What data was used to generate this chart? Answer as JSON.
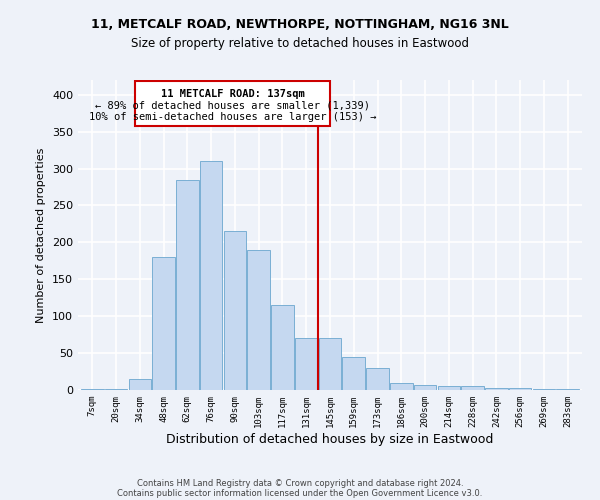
{
  "title1": "11, METCALF ROAD, NEWTHORPE, NOTTINGHAM, NG16 3NL",
  "title2": "Size of property relative to detached houses in Eastwood",
  "xlabel": "Distribution of detached houses by size in Eastwood",
  "ylabel": "Number of detached properties",
  "categories": [
    "7sqm",
    "20sqm",
    "34sqm",
    "48sqm",
    "62sqm",
    "76sqm",
    "90sqm",
    "103sqm",
    "117sqm",
    "131sqm",
    "145sqm",
    "159sqm",
    "173sqm",
    "186sqm",
    "200sqm",
    "214sqm",
    "228sqm",
    "242sqm",
    "256sqm",
    "269sqm",
    "283sqm"
  ],
  "values": [
    2,
    2,
    15,
    180,
    285,
    310,
    215,
    190,
    115,
    70,
    70,
    45,
    30,
    10,
    7,
    5,
    5,
    3,
    3,
    2,
    2
  ],
  "bar_color": "#c5d8f0",
  "bar_edge_color": "#7aafd4",
  "bg_color": "#eef2f9",
  "grid_color": "#ffffff",
  "property_line_x": 9.5,
  "annotation_title": "11 METCALF ROAD: 137sqm",
  "annotation_line1": "← 89% of detached houses are smaller (1,339)",
  "annotation_line2": "10% of semi-detached houses are larger (153) →",
  "annotation_box_color": "#cc0000",
  "ylim": [
    0,
    420
  ],
  "yticks": [
    0,
    50,
    100,
    150,
    200,
    250,
    300,
    350,
    400
  ],
  "footer1": "Contains HM Land Registry data © Crown copyright and database right 2024.",
  "footer2": "Contains public sector information licensed under the Open Government Licence v3.0."
}
